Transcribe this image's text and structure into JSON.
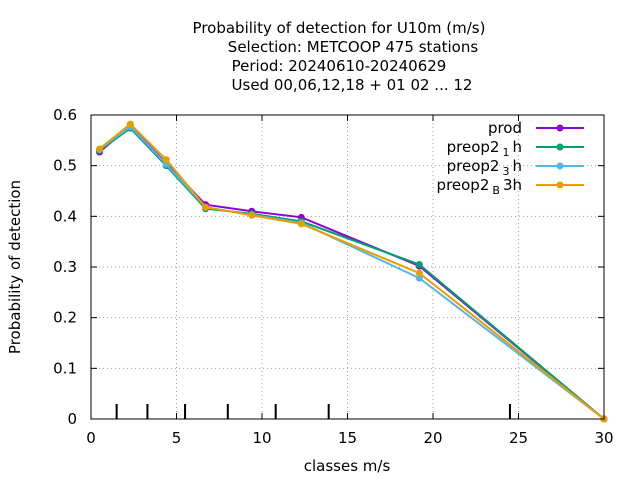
{
  "chart_data": {
    "type": "line",
    "title_lines": [
      "Probability of detection  for U10m (m/s)",
      "Selection: METCOOP    475 stations",
      "Period: 20240610-20240629",
      "Used  00,06,12,18 + 01 02 ... 12"
    ],
    "xlabel": "classes m/s",
    "ylabel": "Probability of detection",
    "xlim": [
      0,
      30
    ],
    "ylim": [
      0,
      0.6
    ],
    "xticks": [
      0,
      5,
      10,
      15,
      20,
      25,
      30
    ],
    "xtick_labels": [
      "0",
      "5",
      "10",
      "15",
      "20",
      "25",
      "30"
    ],
    "yticks": [
      0,
      0.1,
      0.2,
      0.3,
      0.4,
      0.5,
      0.6
    ],
    "ytick_labels": [
      "0",
      "0.1",
      "0.2",
      "0.3",
      "0.4",
      "0.5",
      "0.6"
    ],
    "grid": true,
    "legend_position": "top-right",
    "class_boundaries": [
      1.5,
      3.3,
      5.5,
      8.0,
      10.8,
      13.9,
      24.5
    ],
    "x": [
      0.5,
      2.3,
      4.4,
      6.7,
      9.4,
      12.3,
      19.2,
      30
    ],
    "series": [
      {
        "name": "prod",
        "sub": "",
        "suffix": "",
        "color": "#9400d3",
        "values": [
          0.527,
          0.578,
          0.505,
          0.423,
          0.41,
          0.398,
          0.302,
          0.0
        ]
      },
      {
        "name": "preop2",
        "sub": "1",
        "suffix": "h",
        "color": "#009e73",
        "values": [
          0.53,
          0.574,
          0.5,
          0.415,
          0.405,
          0.39,
          0.305,
          0.0
        ]
      },
      {
        "name": "preop2",
        "sub": "3",
        "suffix": "h",
        "color": "#56b4e9",
        "values": [
          0.532,
          0.577,
          0.503,
          0.418,
          0.403,
          0.387,
          0.278,
          0.0
        ]
      },
      {
        "name": "preop2",
        "sub": "B",
        "suffix": "3h",
        "color": "#e69f00",
        "values": [
          0.533,
          0.582,
          0.512,
          0.418,
          0.402,
          0.385,
          0.288,
          0.0
        ]
      }
    ]
  }
}
